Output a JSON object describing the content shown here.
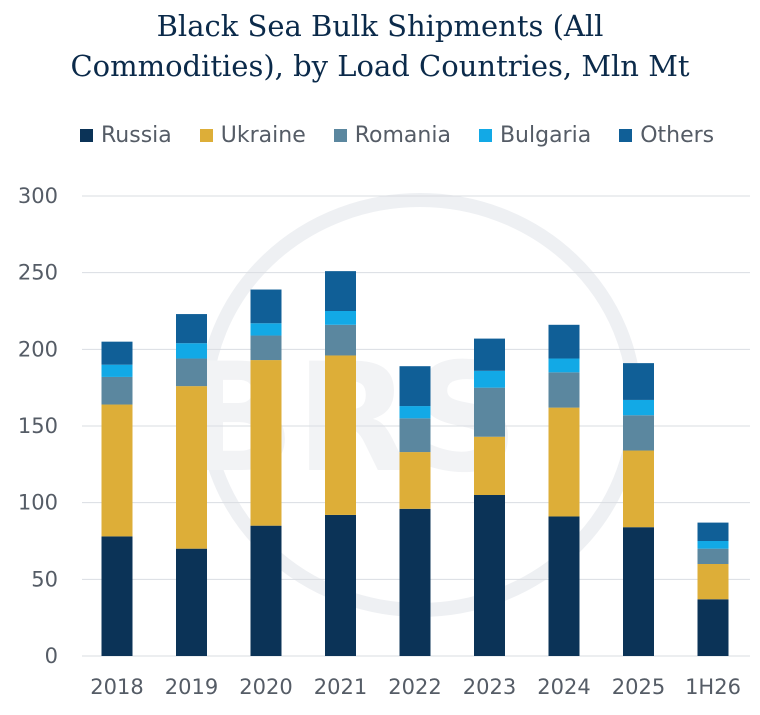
{
  "chart_data": {
    "type": "bar",
    "stacked": true,
    "title_lines": [
      "Black Sea Bulk Shipments (All",
      "Commodities), by Load Countries, Mln Mt"
    ],
    "categories": [
      "2018",
      "2019",
      "2020",
      "2021",
      "2022",
      "2023",
      "2024",
      "2025",
      "1H26"
    ],
    "ylim": [
      0,
      300
    ],
    "yticks": [
      "0",
      "50",
      "100",
      "150",
      "200",
      "250",
      "300"
    ],
    "grid": true,
    "legend_position": "top",
    "watermark": "BRS",
    "series": [
      {
        "name": "Russia",
        "color": "#0b3357",
        "values": [
          78,
          70,
          85,
          92,
          96,
          105,
          91,
          84,
          37
        ]
      },
      {
        "name": "Ukraine",
        "color": "#ddae38",
        "values": [
          86,
          106,
          108,
          104,
          37,
          38,
          71,
          50,
          23
        ]
      },
      {
        "name": "Romania",
        "color": "#5b879f",
        "values": [
          18,
          18,
          16,
          20,
          22,
          32,
          23,
          23,
          10
        ]
      },
      {
        "name": "Bulgaria",
        "color": "#12a9e6",
        "values": [
          8,
          10,
          8,
          9,
          8,
          11,
          9,
          10,
          5
        ]
      },
      {
        "name": "Others",
        "color": "#105f97",
        "values": [
          15,
          19,
          22,
          26,
          26,
          21,
          22,
          24,
          12
        ]
      }
    ]
  }
}
